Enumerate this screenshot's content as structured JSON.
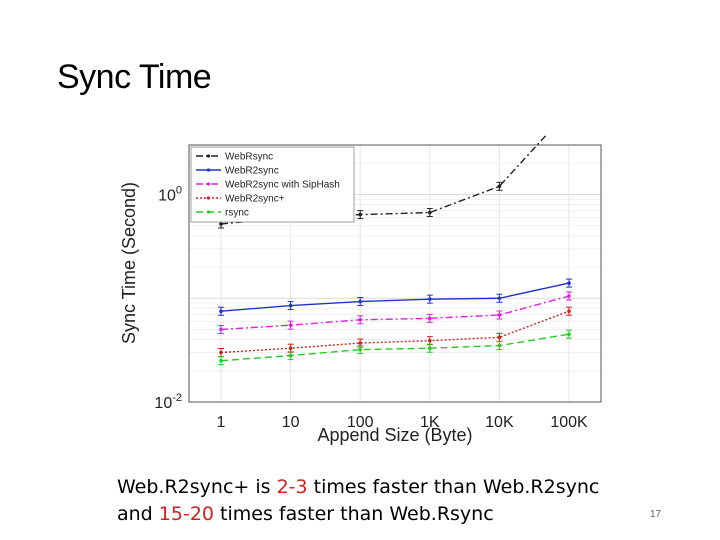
{
  "slide": {
    "title": "Sync Time",
    "page_number": "17",
    "caption": {
      "line1_a": "Web.R2sync+ is ",
      "line1_hl": "2-3",
      "line1_b": " times faster than Web.R2sync",
      "line2_a": "and ",
      "line2_hl": "15-20",
      "line2_b": " times faster than Web.Rsync"
    },
    "highlight_color": "#d42020"
  },
  "chart_data": {
    "type": "line",
    "categories": [
      "1",
      "10",
      "100",
      "1K",
      "10K",
      "100K"
    ],
    "xlabel": "Append Size (Byte)",
    "ylabel": "Sync Time (Second)",
    "yscale": "log",
    "ylim": [
      0.01,
      3
    ],
    "yticks": [
      {
        "value": 1,
        "base": "10",
        "exp": "0"
      },
      {
        "value": 0.01,
        "base": "10",
        "exp": "-2"
      }
    ],
    "grid": true,
    "legend_position": "top-left",
    "series": [
      {
        "name": "WebRsync",
        "color": "#222222",
        "dash": "7,3,2,3",
        "marker": "dot",
        "values": [
          0.52,
          0.6,
          0.64,
          0.67,
          1.2,
          6.5
        ]
      },
      {
        "name": "WebR2sync",
        "color": "#2233cc",
        "dash": "none",
        "marker": "dot",
        "values": [
          0.075,
          0.085,
          0.093,
          0.098,
          0.1,
          0.14
        ]
      },
      {
        "name": "WebR2sync with SipHash",
        "color": "#dd22dd",
        "dash": "7,3,2,3",
        "marker": "x",
        "values": [
          0.05,
          0.055,
          0.062,
          0.064,
          0.069,
          0.105
        ]
      },
      {
        "name": "WebR2sync+",
        "color": "#cc2222",
        "dash": "2,2",
        "marker": "dot",
        "values": [
          0.03,
          0.033,
          0.037,
          0.039,
          0.042,
          0.075
        ]
      },
      {
        "name": "rsync",
        "color": "#22cc22",
        "dash": "7,4",
        "marker": "x",
        "values": [
          0.025,
          0.028,
          0.032,
          0.033,
          0.035,
          0.045
        ]
      }
    ]
  }
}
